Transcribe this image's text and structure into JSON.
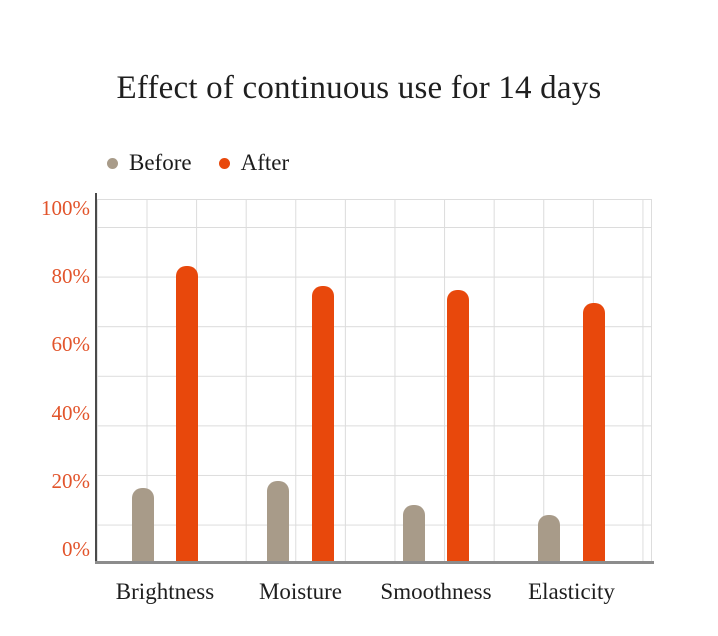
{
  "title": "Effect of continuous use for 14 days",
  "legend": {
    "items": [
      {
        "label": "Before",
        "color": "#a89b89"
      },
      {
        "label": "After",
        "color": "#e8480c"
      }
    ]
  },
  "chart_data": {
    "type": "bar",
    "title": "Effect of continuous use for 14 days",
    "categories": [
      "Brightness",
      "Moisture",
      "Smoothness",
      "Elasticity"
    ],
    "series": [
      {
        "name": "Before",
        "color": "#a89b89",
        "values": [
          18,
          20,
          13,
          10
        ]
      },
      {
        "name": "After",
        "color": "#e8480c",
        "values": [
          83,
          77,
          76,
          72
        ]
      }
    ],
    "unit": "%",
    "xlabel": "",
    "ylabel": "",
    "ylim": [
      0,
      100
    ],
    "y_ticks": [
      "0%",
      "20%",
      "40%",
      "60%",
      "80%",
      "100%"
    ],
    "grid": true,
    "legend_position": "top-left",
    "colors": {
      "tick_label": "#e2542b",
      "grid_line": "#dcdcdc",
      "y_axis_line": "#4a4a4a",
      "x_axis_line": "#8c8c8c",
      "text": "#1f1f1f",
      "background": "#ffffff"
    }
  }
}
